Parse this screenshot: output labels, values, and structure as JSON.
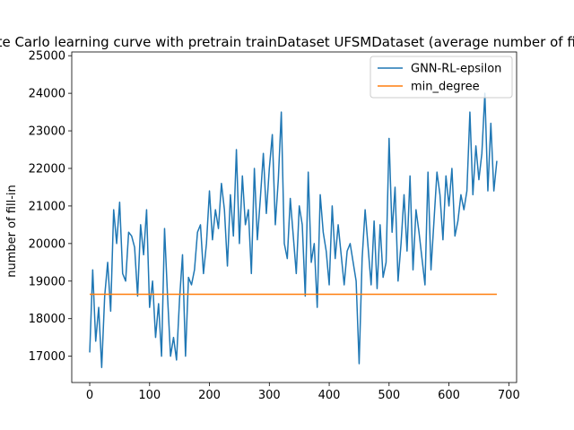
{
  "chart_data": {
    "type": "line",
    "title": "Monte Carlo learning curve with pretrain trainDataset UFSMDataset (average number of fill-in)",
    "xlabel": "",
    "ylabel": "number of fill-in",
    "xlim": [
      -30,
      713
    ],
    "ylim": [
      16300,
      25100
    ],
    "xticks": [
      0,
      100,
      200,
      300,
      400,
      500,
      600,
      700
    ],
    "yticks": [
      17000,
      18000,
      19000,
      20000,
      21000,
      22000,
      23000,
      24000,
      25000
    ],
    "grid": false,
    "legend_position": "upper right",
    "series": [
      {
        "name": "GNN-RL-epsilon",
        "color": "#1f77b4",
        "x": [
          0,
          5,
          10,
          15,
          20,
          25,
          30,
          35,
          40,
          45,
          50,
          55,
          60,
          65,
          70,
          75,
          80,
          85,
          90,
          95,
          100,
          105,
          110,
          115,
          120,
          125,
          130,
          135,
          140,
          145,
          150,
          155,
          160,
          165,
          170,
          175,
          180,
          185,
          190,
          195,
          200,
          205,
          210,
          215,
          220,
          225,
          230,
          235,
          240,
          245,
          250,
          255,
          260,
          265,
          270,
          275,
          280,
          285,
          290,
          295,
          300,
          305,
          310,
          315,
          320,
          325,
          330,
          335,
          340,
          345,
          350,
          355,
          360,
          365,
          370,
          375,
          380,
          385,
          390,
          395,
          400,
          405,
          410,
          415,
          420,
          425,
          430,
          435,
          440,
          445,
          450,
          455,
          460,
          465,
          470,
          475,
          480,
          485,
          490,
          495,
          500,
          505,
          510,
          515,
          520,
          525,
          530,
          535,
          540,
          545,
          550,
          555,
          560,
          565,
          570,
          575,
          580,
          585,
          590,
          595,
          600,
          605,
          610,
          615,
          620,
          625,
          630,
          635,
          640,
          645,
          650,
          655,
          660,
          665,
          670,
          675,
          680
        ],
        "values": [
          17100,
          19300,
          17400,
          18300,
          16700,
          18600,
          19500,
          18200,
          20900,
          20000,
          21100,
          19200,
          19000,
          20300,
          20200,
          19900,
          18600,
          20500,
          19700,
          20900,
          18300,
          19000,
          17500,
          18400,
          17000,
          20400,
          18600,
          17000,
          17500,
          16900,
          18500,
          19700,
          17000,
          19100,
          18900,
          19300,
          20300,
          20500,
          19200,
          20000,
          21400,
          20100,
          20900,
          20400,
          21600,
          20900,
          19400,
          21300,
          20200,
          22500,
          20000,
          21800,
          20500,
          20900,
          19200,
          22000,
          20100,
          21200,
          22400,
          20800,
          22000,
          22900,
          20500,
          21700,
          23500,
          20000,
          19600,
          21200,
          20200,
          19200,
          21000,
          20500,
          18600,
          21900,
          19500,
          20000,
          18300,
          21300,
          20300,
          19800,
          18900,
          21000,
          19600,
          20500,
          19700,
          18900,
          19800,
          20000,
          19500,
          19000,
          16800,
          19600,
          20900,
          19900,
          18900,
          20600,
          18800,
          20500,
          19100,
          19500,
          22800,
          20300,
          21500,
          19000,
          20000,
          21300,
          19800,
          21800,
          19300,
          20900,
          20300,
          19600,
          18900,
          21900,
          19300,
          20600,
          21900,
          21300,
          20100,
          21800,
          21000,
          22000,
          20200,
          20600,
          21300,
          20900,
          21400,
          23500,
          21300,
          22600,
          21700,
          22400,
          24000,
          21400,
          23200,
          21400,
          22200
        ]
      },
      {
        "name": "min_degree",
        "color": "#ff7f0e",
        "x": [
          0,
          680
        ],
        "values": [
          18650,
          18650
        ]
      }
    ]
  }
}
